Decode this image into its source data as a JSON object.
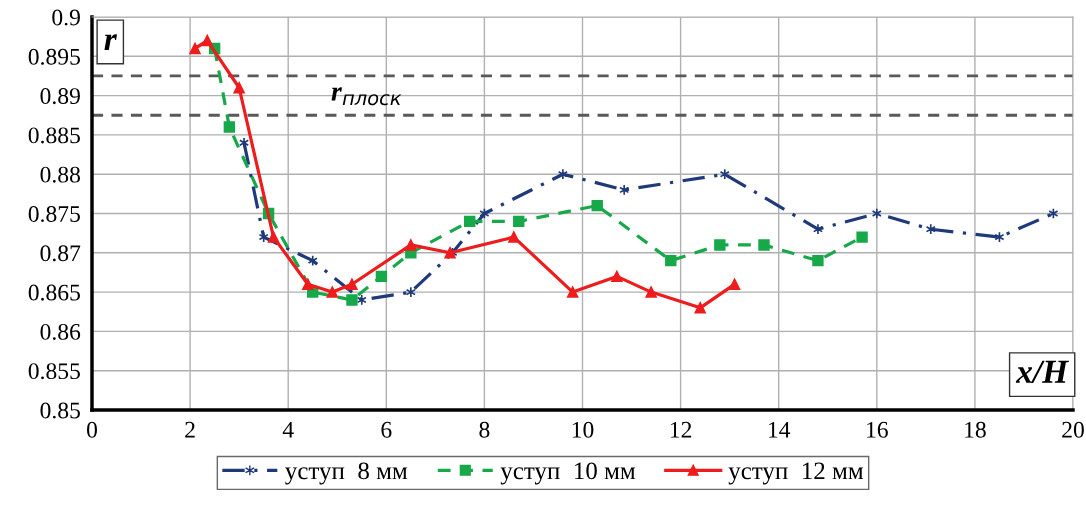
{
  "chart_data": {
    "type": "line",
    "xlabel": "x/H",
    "ylabel": "r",
    "xlim": [
      0,
      20
    ],
    "xticks": [
      0,
      2,
      4,
      6,
      8,
      10,
      12,
      14,
      16,
      18,
      20
    ],
    "ylim": [
      0.85,
      0.9
    ],
    "yticks": [
      0.85,
      0.855,
      0.86,
      0.865,
      0.87,
      0.875,
      0.88,
      0.885,
      0.89,
      0.895,
      0.9
    ],
    "grid": true,
    "legend": "bottom",
    "ref_lines": [
      {
        "axis": "y",
        "value": 0.8925,
        "color": "#595959",
        "line_style": "dashed"
      },
      {
        "axis": "y",
        "value": 0.8875,
        "color": "#595959",
        "line_style": "dashed"
      }
    ],
    "annotations": [
      "r$_{плоск}$"
    ],
    "series": [
      {
        "name": "уступ  8 мм",
        "color": "#1f3a7a",
        "marker": "cross",
        "line_style": "dashdot",
        "x": [
          3.1,
          3.5,
          4.5,
          5.5,
          6.5,
          7.35,
          8.0,
          9.6,
          10.85,
          12.9,
          14.8,
          16.0,
          17.1,
          18.5,
          19.6
        ],
        "values": [
          0.884,
          0.872,
          0.869,
          0.864,
          0.865,
          0.87,
          0.875,
          0.88,
          0.878,
          0.88,
          0.873,
          0.875,
          0.873,
          0.872,
          0.875
        ]
      },
      {
        "name": "уступ  10 мм",
        "color": "#17a84a",
        "marker": "square",
        "line_style": "dashed",
        "x": [
          2.5,
          2.8,
          3.6,
          4.5,
          5.3,
          5.9,
          6.5,
          7.7,
          8.7,
          10.3,
          11.8,
          12.8,
          13.7,
          14.8,
          15.7
        ],
        "values": [
          0.896,
          0.886,
          0.875,
          0.865,
          0.864,
          0.867,
          0.87,
          0.874,
          0.874,
          0.876,
          0.869,
          0.871,
          0.871,
          0.869,
          0.872
        ]
      },
      {
        "name": "уступ  12 мм",
        "color": "#ee1c1c",
        "marker": "triangle",
        "line_style": "solid",
        "x": [
          2.1,
          2.35,
          3.0,
          3.7,
          4.4,
          4.9,
          5.3,
          6.5,
          7.3,
          8.6,
          9.8,
          10.7,
          11.4,
          12.4,
          13.1
        ],
        "values": [
          0.896,
          0.897,
          0.891,
          0.872,
          0.866,
          0.865,
          0.866,
          0.871,
          0.87,
          0.872,
          0.865,
          0.867,
          0.865,
          0.863,
          0.866
        ]
      }
    ]
  }
}
